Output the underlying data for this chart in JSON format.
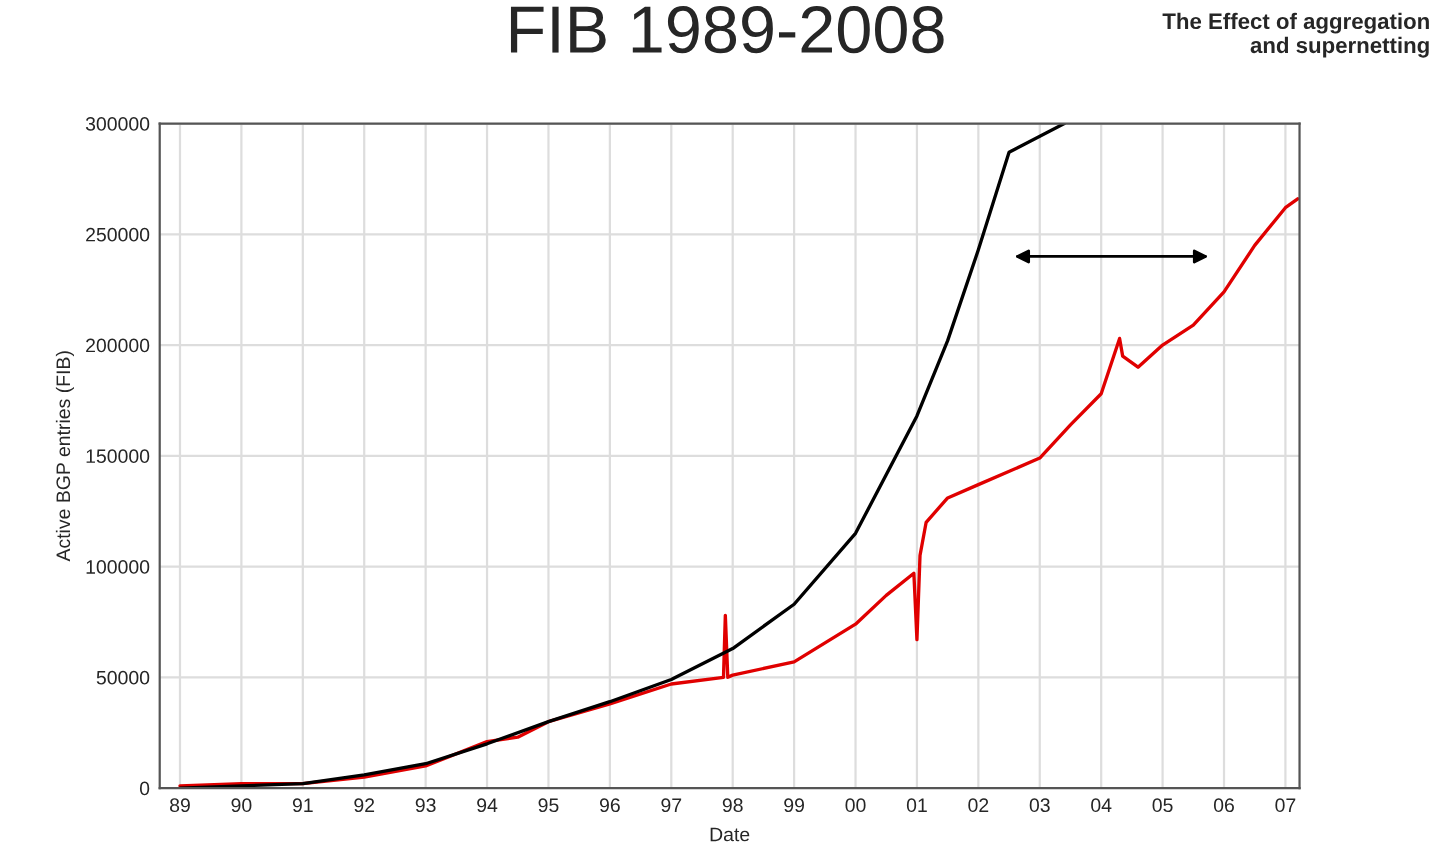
{
  "chart_data": {
    "type": "line",
    "title": "FIB 1989-2008",
    "xlabel": "Date",
    "ylabel": "Active BGP entries (FIB)",
    "annotations": [
      "The Effect of aggregation\n and supernetting"
    ],
    "series": [
      {
        "color": "#e00000",
        "x": [
          1989,
          1990,
          1991,
          1992,
          1993,
          1994,
          1994.5,
          1995,
          1996,
          1997,
          1997.85,
          1997.88,
          1997.92,
          1998,
          1999,
          2000,
          2000.5,
          2000.95,
          2001.0,
          2001.05,
          2001.15,
          2001.5,
          2002,
          2003,
          2003.5,
          2004,
          2004.3,
          2004.35,
          2004.6,
          2005,
          2005.5,
          2006,
          2006.5,
          2007,
          2007.2
        ],
        "values": [
          1000,
          2000,
          2000,
          5000,
          10000,
          21000,
          23000,
          30000,
          38000,
          47000,
          50000,
          78000,
          50000,
          51000,
          57000,
          74000,
          87000,
          97000,
          67000,
          105000,
          120000,
          131000,
          137000,
          149000,
          164000,
          178000,
          203000,
          195000,
          190000,
          200000,
          209000,
          224000,
          245000,
          262000,
          266000
        ]
      },
      {
        "color": "#000000",
        "x": [
          1989,
          1990,
          1991,
          1992,
          1993,
          1994,
          1995,
          1996,
          1997,
          1998,
          1999,
          2000,
          2001,
          2001.5,
          2002,
          2002.5,
          2003.4
        ],
        "values": [
          0,
          1000,
          2000,
          6000,
          11000,
          20000,
          30000,
          39000,
          49000,
          63000,
          83000,
          115000,
          168000,
          202000,
          243000,
          287000,
          300000
        ]
      }
    ],
    "xlim": [
      1988.67,
      2007.23
    ],
    "ylim": [
      0,
      300000
    ],
    "xticks": [
      {
        "value": 1989,
        "label": "89"
      },
      {
        "value": 1990,
        "label": "90"
      },
      {
        "value": 1991,
        "label": "91"
      },
      {
        "value": 1992,
        "label": "92"
      },
      {
        "value": 1993,
        "label": "93"
      },
      {
        "value": 1994,
        "label": "94"
      },
      {
        "value": 1995,
        "label": "95"
      },
      {
        "value": 1996,
        "label": "96"
      },
      {
        "value": 1997,
        "label": "97"
      },
      {
        "value": 1998,
        "label": "98"
      },
      {
        "value": 1999,
        "label": "99"
      },
      {
        "value": 2000,
        "label": "00"
      },
      {
        "value": 2001,
        "label": "01"
      },
      {
        "value": 2002,
        "label": "02"
      },
      {
        "value": 2003,
        "label": "03"
      },
      {
        "value": 2004,
        "label": "04"
      },
      {
        "value": 2005,
        "label": "05"
      },
      {
        "value": 2006,
        "label": "06"
      },
      {
        "value": 2007,
        "label": "07"
      }
    ],
    "yticks": [
      0,
      50000,
      100000,
      150000,
      200000,
      250000,
      300000
    ],
    "grid": true,
    "line_style": "solid"
  }
}
